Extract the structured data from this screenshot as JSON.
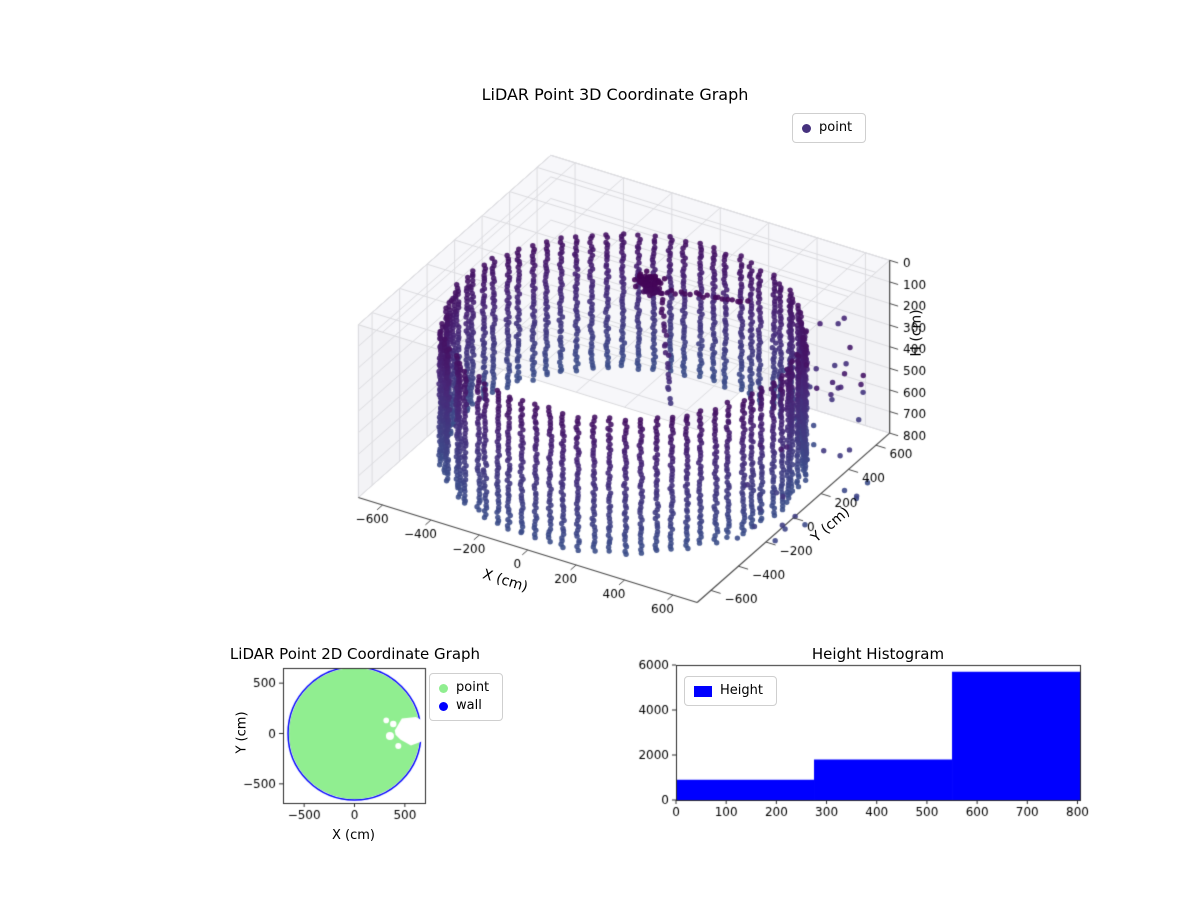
{
  "chart3d": {
    "title": "LiDAR Point 3D Coordinate Graph",
    "xlabel": "X (cm)",
    "ylabel": "Y (cm)",
    "zlabel": "H (cm)",
    "xticks": [
      -600,
      -400,
      -200,
      0,
      200,
      400,
      600
    ],
    "yticks": [
      -600,
      -400,
      -200,
      0,
      200,
      400,
      600
    ],
    "zticks": [
      0,
      100,
      200,
      300,
      400,
      500,
      600,
      700,
      800
    ],
    "legend": [
      {
        "label": "point",
        "color": "#46327e"
      }
    ]
  },
  "chart2d": {
    "title": "LiDAR Point 2D Coordinate Graph",
    "xlabel": "X (cm)",
    "ylabel": "Y (cm)",
    "xticks": [
      -500,
      0,
      500
    ],
    "yticks": [
      -500,
      0,
      500
    ],
    "legend": [
      {
        "label": "point",
        "color": "#90ee90"
      },
      {
        "label": "wall",
        "color": "#0000ff"
      }
    ]
  },
  "histogram": {
    "title": "Height Histogram",
    "xticks": [
      0,
      100,
      200,
      300,
      400,
      500,
      600,
      700,
      800
    ],
    "yticks": [
      0,
      2000,
      4000,
      6000
    ],
    "legend": [
      {
        "label": "Height",
        "color": "#0000ff"
      }
    ]
  },
  "chart_data": [
    {
      "type": "scatter",
      "title": "LiDAR Point 3D Coordinate Graph",
      "xlabel": "X (cm)",
      "ylabel": "Y (cm)",
      "zlabel": "H (cm)",
      "xlim": [
        -700,
        700
      ],
      "ylim": [
        -700,
        700
      ],
      "zlim": [
        0,
        800
      ],
      "z_axis_inverted": true,
      "legend": [
        "point"
      ],
      "colormap": "viridis over H (dark purple = low H, blue = high H)",
      "description": "Cylindrical LiDAR room scan: vertical columns of wall points on a circle of radius ~650 cm between H~160 and H~780 cm, a dark low-height cluster near (0,190), two short point trails from the cluster, and scattered outlier points beyond the wall at positive X/Y.",
      "points": {
        "wall_columns": 72,
        "wall_radius_cm": 650,
        "wall_h_min": 160,
        "wall_h_max": 780,
        "wall_h_step": 15,
        "cluster": {
          "center": [
            0,
            190,
            60
          ],
          "spread": [
            60,
            45,
            50
          ],
          "count": 80
        },
        "trail_down": {
          "from": [
            60,
            170,
            100
          ],
          "to": [
            130,
            110,
            520
          ],
          "count": 22
        },
        "trail_right": {
          "from": [
            60,
            210,
            90
          ],
          "to": [
            360,
            260,
            60
          ],
          "count": 18
        },
        "outliers": {
          "count": 48,
          "radius_cm": [
            680,
            920
          ],
          "angle_deg": [
            -25,
            75
          ],
          "h": [
            120,
            780
          ]
        }
      }
    },
    {
      "type": "scatter",
      "title": "LiDAR Point 2D Coordinate Graph",
      "xlabel": "X (cm)",
      "ylabel": "Y (cm)",
      "xlim": [
        -700,
        700
      ],
      "ylim": [
        -670,
        670
      ],
      "series": [
        {
          "name": "point",
          "color": "#90ee90"
        },
        {
          "name": "wall",
          "color": "#0000ff"
        }
      ],
      "disk": {
        "center": [
          0,
          0
        ],
        "radius_cm": 650
      },
      "notch_polygon_cm": [
        [
          400,
          30
        ],
        [
          470,
          150
        ],
        [
          610,
          165
        ],
        [
          695,
          120
        ],
        [
          695,
          -70
        ],
        [
          560,
          -120
        ],
        [
          455,
          -60
        ],
        [
          408,
          -12
        ]
      ],
      "gap_dots_cm": [
        [
          352,
          -25,
          40
        ],
        [
          385,
          95,
          32
        ],
        [
          315,
          130,
          28
        ],
        [
          435,
          -125,
          30
        ]
      ]
    },
    {
      "type": "bar",
      "title": "Height Histogram",
      "legend": [
        "Height"
      ],
      "bin_edges_cm": [
        0,
        275,
        550,
        805
      ],
      "counts": [
        900,
        1800,
        5700
      ],
      "xlim": [
        0,
        805
      ],
      "ylim": [
        0,
        6000
      ],
      "bar_color": "#0000ff"
    }
  ]
}
